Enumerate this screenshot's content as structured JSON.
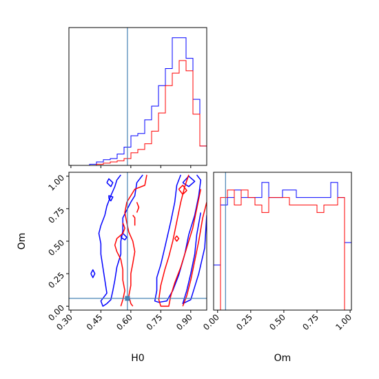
{
  "chart_data": {
    "type": "corner",
    "parameters": [
      "H0",
      "Om"
    ],
    "truth": {
      "H0": 0.583,
      "Om": 0.06
    },
    "colors": {
      "blue": "#0000ff",
      "red": "#ff0000",
      "truth": "#4682b4"
    },
    "panels": {
      "h0_hist": {
        "type": "step-histogram",
        "xlim": [
          0.29,
          0.98
        ],
        "bin_edges": [
          0.29,
          0.3245,
          0.359,
          0.3935,
          0.428,
          0.4625,
          0.497,
          0.5315,
          0.566,
          0.6005,
          0.635,
          0.6695,
          0.704,
          0.7385,
          0.773,
          0.8075,
          0.842,
          0.8765,
          0.911,
          0.9455,
          0.98
        ],
        "series": [
          {
            "color": "blue",
            "values": [
              0,
              0,
              0,
              1,
              3,
              5,
              6,
              10,
              16,
              26,
              28,
              40,
              52,
              70,
              85,
              112,
              112,
              94,
              58,
              17
            ]
          },
          {
            "color": "red",
            "values": [
              0,
              0,
              0,
              0,
              1,
              2,
              3,
              4,
              6,
              11,
              14,
              19,
              30,
              46,
              70,
              81,
              92,
              83,
              45,
              17
            ]
          }
        ]
      },
      "om_hist": {
        "type": "step-histogram",
        "xlim": [
          -0.03,
          1.01
        ],
        "bin_edges": [
          -0.03,
          0.022,
          0.074,
          0.126,
          0.178,
          0.23,
          0.282,
          0.334,
          0.386,
          0.438,
          0.49,
          0.542,
          0.594,
          0.646,
          0.698,
          0.75,
          0.802,
          0.854,
          0.906,
          0.958,
          1.01
        ],
        "series": [
          {
            "color": "blue",
            "values": [
              6,
              14,
              15,
              16,
              15,
              15,
              15,
              17,
              15,
              15,
              16,
              16,
              15,
              15,
              15,
              15,
              15,
              17,
              15,
              9
            ]
          },
          {
            "color": "red",
            "values": [
              0,
              15,
              16,
              14,
              16,
              15,
              14,
              13,
              15,
              15,
              15,
              14,
              14,
              14,
              14,
              13,
              14,
              14,
              15,
              0
            ]
          }
        ]
      },
      "contour": {
        "x_param": "H0",
        "y_param": "Om",
        "xlim": [
          0.29,
          0.98
        ],
        "ylim": [
          -0.03,
          1.03
        ],
        "xticks": [
          0.3,
          0.45,
          0.6,
          0.75,
          0.9
        ],
        "yticks": [
          0.0,
          0.25,
          0.5,
          0.75,
          1.0
        ],
        "paths": [
          {
            "color": "blue",
            "points": [
              [
                0.66,
                1.01
              ],
              [
                0.63,
                0.95
              ],
              [
                0.62,
                0.85
              ],
              [
                0.6,
                0.8
              ],
              [
                0.58,
                0.74
              ],
              [
                0.56,
                0.68
              ],
              [
                0.56,
                0.58
              ],
              [
                0.55,
                0.5
              ],
              [
                0.55,
                0.4
              ],
              [
                0.53,
                0.3
              ],
              [
                0.52,
                0.2
              ],
              [
                0.51,
                0.12
              ],
              [
                0.5,
                0.05
              ],
              [
                0.48,
                0.02
              ],
              [
                0.46,
                0.0
              ],
              [
                0.45,
                0.04
              ],
              [
                0.48,
                0.1
              ],
              [
                0.47,
                0.2
              ],
              [
                0.46,
                0.3
              ],
              [
                0.45,
                0.4
              ],
              [
                0.45,
                0.48
              ],
              [
                0.44,
                0.56
              ],
              [
                0.45,
                0.62
              ],
              [
                0.47,
                0.7
              ],
              [
                0.48,
                0.77
              ],
              [
                0.5,
                0.85
              ],
              [
                0.52,
                0.92
              ],
              [
                0.53,
                0.97
              ],
              [
                0.55,
                1.01
              ]
            ]
          },
          {
            "color": "blue",
            "points": [
              [
                0.4,
                0.25
              ],
              [
                0.41,
                0.22
              ],
              [
                0.42,
                0.25
              ],
              [
                0.41,
                0.28
              ],
              [
                0.4,
                0.25
              ]
            ]
          },
          {
            "color": "blue",
            "points": [
              [
                0.48,
                0.95
              ],
              [
                0.5,
                0.92
              ],
              [
                0.51,
                0.95
              ],
              [
                0.49,
                0.98
              ],
              [
                0.48,
                0.95
              ]
            ]
          },
          {
            "color": "blue",
            "points": [
              [
                0.49,
                0.83
              ],
              [
                0.5,
                0.81
              ],
              [
                0.51,
                0.84
              ],
              [
                0.49,
                0.85
              ],
              [
                0.49,
                0.83
              ]
            ]
          },
          {
            "color": "blue",
            "points": [
              [
                0.55,
                0.53
              ],
              [
                0.57,
                0.51
              ],
              [
                0.58,
                0.53
              ],
              [
                0.56,
                0.56
              ],
              [
                0.55,
                0.53
              ]
            ]
          },
          {
            "color": "blue",
            "points": [
              [
                0.85,
                1.01
              ],
              [
                0.83,
                0.93
              ],
              [
                0.82,
                0.8
              ],
              [
                0.8,
                0.65
              ],
              [
                0.77,
                0.45
              ],
              [
                0.75,
                0.32
              ],
              [
                0.73,
                0.22
              ],
              [
                0.73,
                0.12
              ],
              [
                0.72,
                0.04
              ],
              [
                0.74,
                0.03
              ],
              [
                0.78,
                0.04
              ],
              [
                0.81,
                0.12
              ],
              [
                0.84,
                0.24
              ],
              [
                0.87,
                0.4
              ],
              [
                0.89,
                0.55
              ],
              [
                0.92,
                0.7
              ],
              [
                0.94,
                0.85
              ],
              [
                0.95,
                0.97
              ],
              [
                0.93,
                1.01
              ]
            ]
          },
          {
            "color": "blue",
            "points": [
              [
                0.95,
                0.72
              ],
              [
                0.93,
                0.55
              ],
              [
                0.92,
                0.4
              ],
              [
                0.9,
                0.25
              ],
              [
                0.88,
                0.12
              ],
              [
                0.86,
                0.02
              ],
              [
                0.9,
                0.05
              ],
              [
                0.94,
                0.25
              ],
              [
                0.97,
                0.45
              ],
              [
                0.98,
                0.7
              ]
            ]
          },
          {
            "color": "blue",
            "points": [
              [
                0.86,
                0.95
              ],
              [
                0.89,
                0.92
              ],
              [
                0.92,
                0.96
              ],
              [
                0.89,
                1.0
              ],
              [
                0.86,
                0.95
              ]
            ]
          },
          {
            "color": "red",
            "points": [
              [
                0.68,
                1.01
              ],
              [
                0.67,
                0.93
              ],
              [
                0.62,
                0.9
              ],
              [
                0.6,
                0.85
              ],
              [
                0.58,
                0.8
              ],
              [
                0.57,
                0.72
              ],
              [
                0.58,
                0.64
              ],
              [
                0.59,
                0.57
              ],
              [
                0.61,
                0.5
              ],
              [
                0.62,
                0.42
              ],
              [
                0.61,
                0.33
              ],
              [
                0.6,
                0.25
              ],
              [
                0.6,
                0.16
              ],
              [
                0.59,
                0.08
              ],
              [
                0.6,
                0.02
              ],
              [
                0.61,
                0.0
              ]
            ]
          },
          {
            "color": "red",
            "points": [
              [
                0.55,
                0.0
              ],
              [
                0.56,
                0.05
              ],
              [
                0.57,
                0.12
              ],
              [
                0.56,
                0.2
              ],
              [
                0.56,
                0.28
              ],
              [
                0.55,
                0.36
              ],
              [
                0.53,
                0.42
              ],
              [
                0.52,
                0.47
              ],
              [
                0.53,
                0.52
              ],
              [
                0.56,
                0.56
              ],
              [
                0.57,
                0.6
              ],
              [
                0.56,
                0.64
              ]
            ]
          },
          {
            "color": "red",
            "points": [
              [
                0.61,
                0.7
              ],
              [
                0.62,
                0.68
              ],
              [
                0.62,
                0.62
              ]
            ]
          },
          {
            "color": "red",
            "points": [
              [
                0.63,
                0.8
              ],
              [
                0.64,
                0.76
              ],
              [
                0.63,
                0.72
              ]
            ]
          },
          {
            "color": "red",
            "points": [
              [
                0.89,
                1.01
              ],
              [
                0.87,
                0.92
              ],
              [
                0.85,
                0.8
              ],
              [
                0.83,
                0.65
              ],
              [
                0.81,
                0.5
              ],
              [
                0.79,
                0.38
              ],
              [
                0.77,
                0.28
              ],
              [
                0.75,
                0.16
              ],
              [
                0.74,
                0.05
              ],
              [
                0.75,
                0.0
              ],
              [
                0.79,
                0.0
              ],
              [
                0.8,
                0.08
              ],
              [
                0.82,
                0.18
              ],
              [
                0.85,
                0.3
              ],
              [
                0.88,
                0.45
              ],
              [
                0.91,
                0.6
              ],
              [
                0.93,
                0.75
              ],
              [
                0.95,
                0.9
              ]
            ]
          },
          {
            "color": "red",
            "points": [
              [
                0.98,
                0.8
              ],
              [
                0.96,
                0.68
              ],
              [
                0.94,
                0.5
              ],
              [
                0.92,
                0.35
              ],
              [
                0.9,
                0.2
              ],
              [
                0.88,
                0.08
              ],
              [
                0.86,
                0.0
              ]
            ]
          },
          {
            "color": "red",
            "points": [
              [
                0.84,
                0.9
              ],
              [
                0.86,
                0.86
              ],
              [
                0.88,
                0.89
              ],
              [
                0.86,
                0.93
              ],
              [
                0.84,
                0.9
              ]
            ]
          },
          {
            "color": "red",
            "points": [
              [
                0.82,
                0.52
              ],
              [
                0.83,
                0.5
              ],
              [
                0.84,
                0.52
              ],
              [
                0.83,
                0.54
              ],
              [
                0.82,
                0.52
              ]
            ]
          }
        ]
      }
    }
  }
}
